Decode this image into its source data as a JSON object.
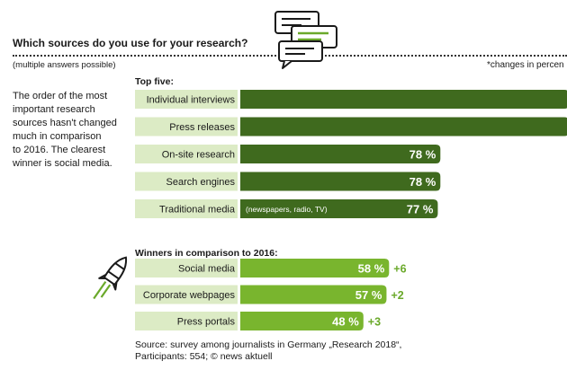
{
  "title": "Which sources do you use for your research?",
  "subnote": "(multiple answers possible)",
  "unit_note": "*changes in percen",
  "intro_lines": [
    "The order of the most",
    "important research",
    "sources hasn't changed",
    "much in comparison",
    "to 2016. The clearest",
    "winner is social media."
  ],
  "source_lines": [
    "Source: survey among journalists in Germany „Research 2018“,",
    "Participants: 554; © news aktuell"
  ],
  "icons": {
    "chat": "chat-bubbles-icon",
    "rocket": "rocket-icon"
  },
  "colors": {
    "dark_green": "#3f6a1e",
    "light_green": "#79b52e",
    "label_bg": "#dcebc5",
    "change_green": "#6aa92a"
  },
  "chart_data": [
    {
      "type": "bar",
      "title": "Top five:",
      "categories": [
        "Individual interviews",
        "Press releases",
        "On-site research",
        "Search engines",
        "Traditional media"
      ],
      "values": [
        null,
        null,
        78,
        78,
        77
      ],
      "value_labels": [
        "",
        "",
        "78 %",
        "78 %",
        "77 %"
      ],
      "annotations": [
        "",
        "",
        "",
        "",
        "(newspapers, radio, TV)"
      ],
      "xlim": [
        0,
        100
      ]
    },
    {
      "type": "bar",
      "title": "Winners in comparison to 2016:",
      "categories": [
        "Social media",
        "Corporate webpages",
        "Press portals"
      ],
      "values": [
        58,
        57,
        48
      ],
      "value_labels": [
        "58 %",
        "57 %",
        "48 %"
      ],
      "changes": [
        "+6",
        "+2",
        "+3"
      ],
      "xlim": [
        0,
        100
      ]
    }
  ]
}
